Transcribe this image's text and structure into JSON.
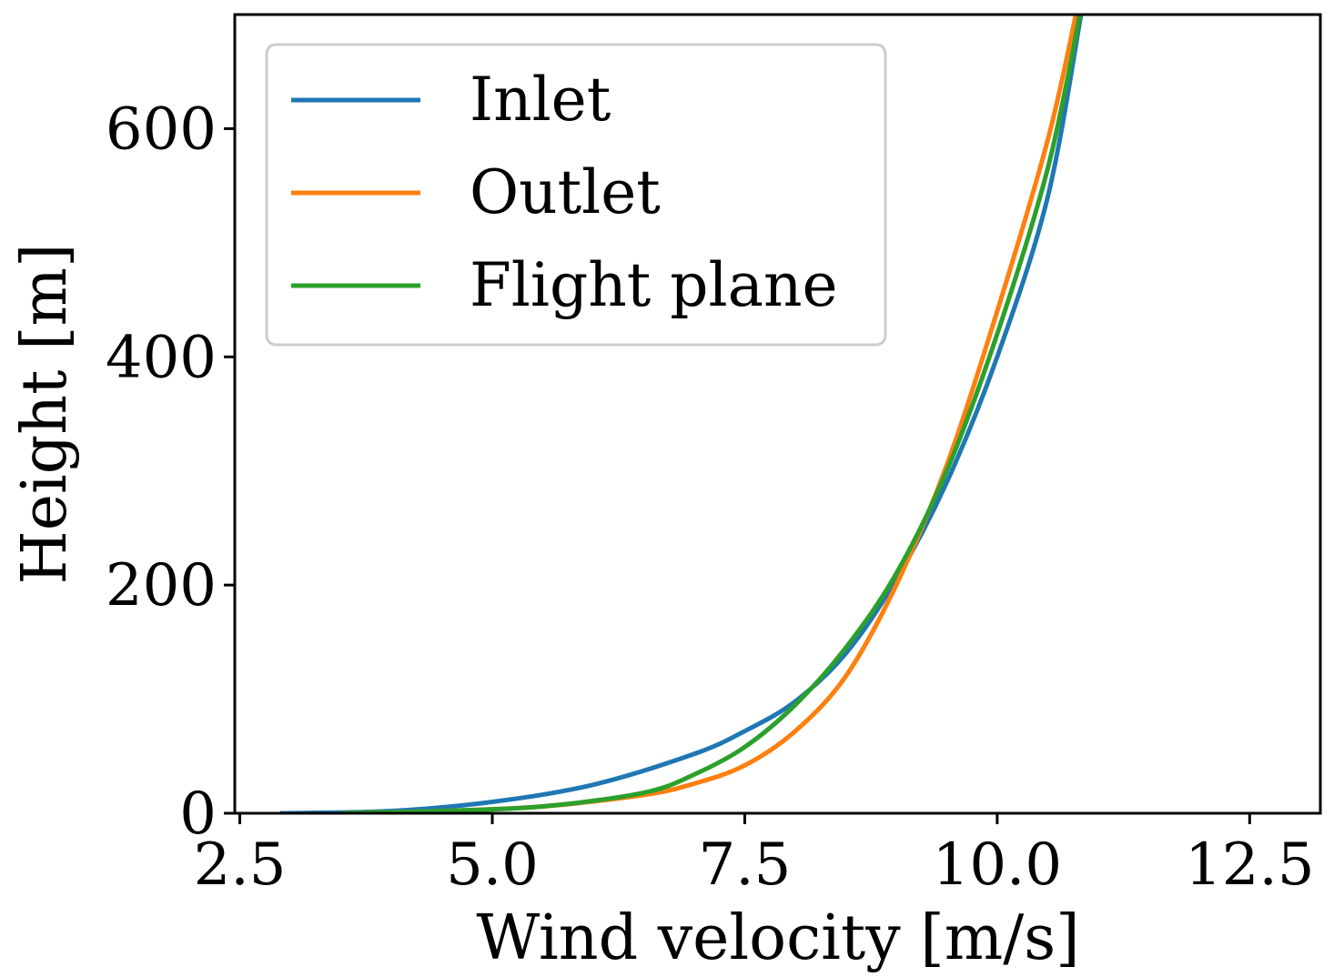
{
  "chart_data": {
    "type": "line",
    "xlabel": "Wind velocity [m/s]",
    "ylabel": "Height [m]",
    "xlim": [
      2.45,
      13.2
    ],
    "ylim": [
      0,
      700
    ],
    "xticks": [
      2.5,
      5.0,
      7.5,
      10.0,
      12.5
    ],
    "xtick_labels": [
      "2.5",
      "5.0",
      "7.5",
      "10.0",
      "12.5"
    ],
    "yticks": [
      0,
      200,
      400,
      600
    ],
    "ytick_labels": [
      "0",
      "200",
      "400",
      "600"
    ],
    "grid": false,
    "legend": "top-left",
    "series": [
      {
        "name": "Inlet",
        "color": "#1f77b4",
        "points": [
          [
            2.9,
            0
          ],
          [
            4.0,
            2
          ],
          [
            5.0,
            10
          ],
          [
            6.0,
            25
          ],
          [
            7.0,
            52
          ],
          [
            7.5,
            72
          ],
          [
            8.0,
            98
          ],
          [
            8.5,
            140
          ],
          [
            9.0,
            205
          ],
          [
            9.5,
            290
          ],
          [
            10.0,
            400
          ],
          [
            10.5,
            540
          ],
          [
            10.83,
            700
          ]
        ]
      },
      {
        "name": "Outlet",
        "color": "#ff7f0e",
        "points": [
          [
            3.5,
            0
          ],
          [
            4.5,
            2
          ],
          [
            5.5,
            6
          ],
          [
            6.5,
            16
          ],
          [
            7.0,
            26
          ],
          [
            7.5,
            42
          ],
          [
            8.0,
            72
          ],
          [
            8.5,
            120
          ],
          [
            9.0,
            200
          ],
          [
            9.5,
            305
          ],
          [
            10.0,
            440
          ],
          [
            10.5,
            590
          ],
          [
            10.78,
            700
          ]
        ]
      },
      {
        "name": "Flight plane",
        "color": "#2ca02c",
        "points": [
          [
            3.5,
            0
          ],
          [
            4.5,
            2
          ],
          [
            5.5,
            6
          ],
          [
            6.5,
            18
          ],
          [
            7.0,
            34
          ],
          [
            7.5,
            58
          ],
          [
            8.0,
            95
          ],
          [
            8.5,
            145
          ],
          [
            9.0,
            210
          ],
          [
            9.5,
            300
          ],
          [
            10.0,
            420
          ],
          [
            10.5,
            565
          ],
          [
            10.82,
            700
          ]
        ]
      }
    ]
  }
}
